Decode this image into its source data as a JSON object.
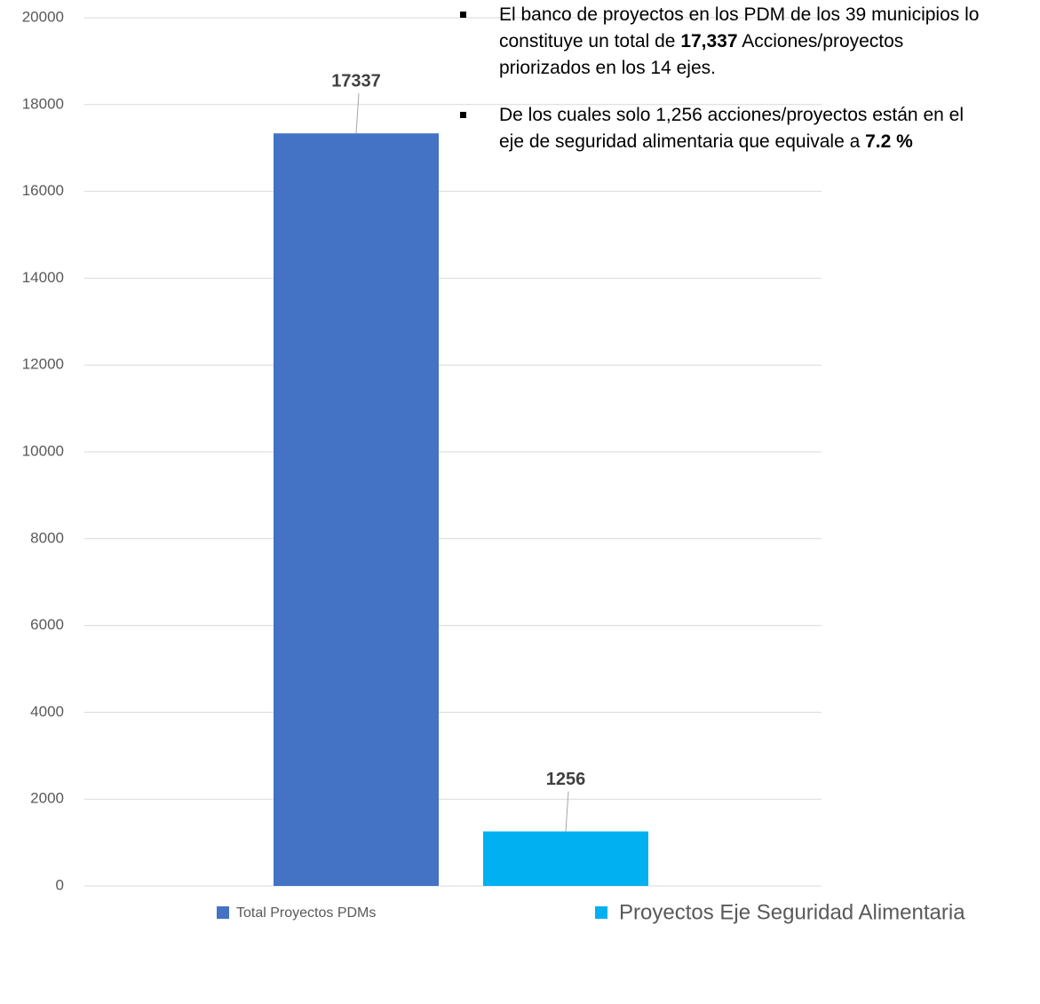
{
  "chart_data": {
    "type": "bar",
    "categories": [
      null
    ],
    "series": [
      {
        "name": "Total Proyectos PDMs",
        "color": "#4472c4",
        "values": [
          17337
        ]
      },
      {
        "name": "Proyectos Eje Seguridad Alimentaria",
        "color": "#00b0f0",
        "values": [
          1256
        ]
      }
    ],
    "ylim": [
      0,
      20000
    ],
    "yticks": [
      0,
      2000,
      4000,
      6000,
      8000,
      10000,
      12000,
      14000,
      16000,
      18000,
      20000
    ],
    "grid": true,
    "data_labels": true,
    "legend": "bottom",
    "annotations": [
      {
        "segments": [
          {
            "text": "El banco de proyectos en los PDM de los 39 municipios lo constituye un total de ",
            "bold": false
          },
          {
            "text": "17,337",
            "bold": true
          },
          {
            "text": " Acciones/proyectos priorizados en los 14 ejes.",
            "bold": false
          }
        ]
      },
      {
        "segments": [
          {
            "text": "De los cuales solo 1,256 acciones/proyectos están en el eje de seguridad alimentaria que equivale a ",
            "bold": false
          },
          {
            "text": "7.2 %",
            "bold": true
          }
        ]
      }
    ]
  }
}
